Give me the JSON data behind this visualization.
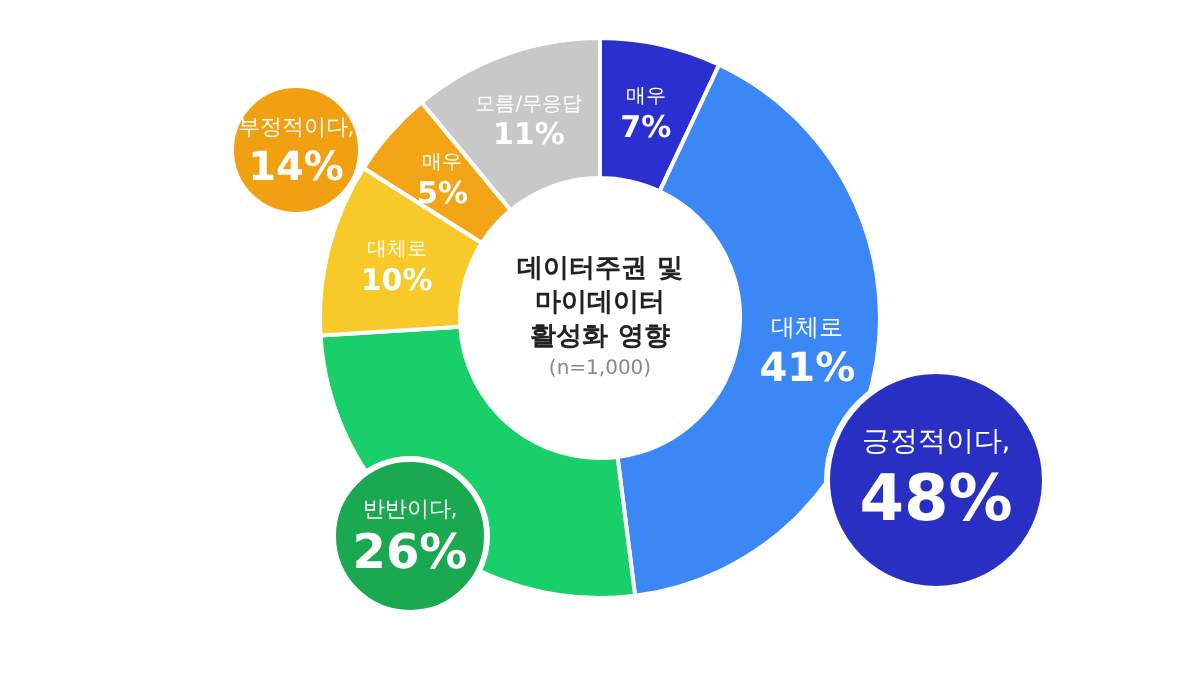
{
  "chart_data": {
    "type": "donut",
    "title": "데이터주권 및 마이데이터 활성화 영향",
    "subtitle": "(n=1,000)",
    "categories": [
      "매우",
      "대체로",
      null,
      "대체로",
      "매우",
      "모름/무응답"
    ],
    "values": [
      7,
      41,
      26,
      10,
      5,
      11
    ],
    "value_labels": [
      "7%",
      "41%",
      null,
      "10%",
      "5%",
      "11%"
    ],
    "colors": [
      "#2b2fcf",
      "#3a87f5",
      "#19cf6a",
      "#f7ca2a",
      "#f2a516",
      "#c8c8c8"
    ],
    "annotations": [
      "긍정적이다, 48%",
      "부정적이다, 14%",
      "반반이다, 26%"
    ],
    "legend": false
  }
}
